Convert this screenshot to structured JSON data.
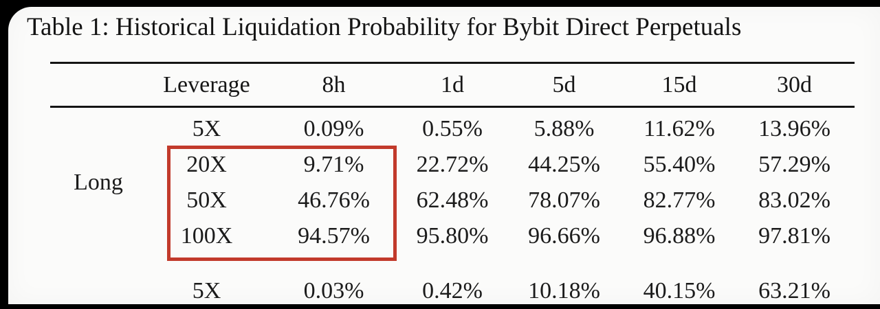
{
  "document": {
    "caption": "Table 1: Historical Liquidation Probability for Bybit Direct Perpetuals"
  },
  "table": {
    "columns": [
      "Leverage",
      "8h",
      "1d",
      "5d",
      "15d",
      "30d"
    ],
    "groups": [
      {
        "label": "Long",
        "rows": [
          {
            "leverage": "5X",
            "values": [
              "0.09%",
              "0.55%",
              "5.88%",
              "11.62%",
              "13.96%"
            ]
          },
          {
            "leverage": "20X",
            "values": [
              "9.71%",
              "22.72%",
              "44.25%",
              "55.40%",
              "57.29%"
            ]
          },
          {
            "leverage": "50X",
            "values": [
              "46.76%",
              "62.48%",
              "78.07%",
              "82.77%",
              "83.02%"
            ]
          },
          {
            "leverage": "100X",
            "values": [
              "94.57%",
              "95.80%",
              "96.66%",
              "96.88%",
              "97.81%"
            ]
          }
        ]
      },
      {
        "label": "",
        "rows": [
          {
            "leverage": "5X",
            "values": [
              "0.03%",
              "0.42%",
              "10.18%",
              "40.15%",
              "63.21%"
            ]
          }
        ]
      }
    ],
    "highlight": {
      "color": "#c23a2b",
      "style": "red-rectangle-annotation",
      "covers_rows": [
        "20X",
        "50X",
        "100X"
      ],
      "covers_columns": [
        "Leverage",
        "8h"
      ]
    }
  }
}
